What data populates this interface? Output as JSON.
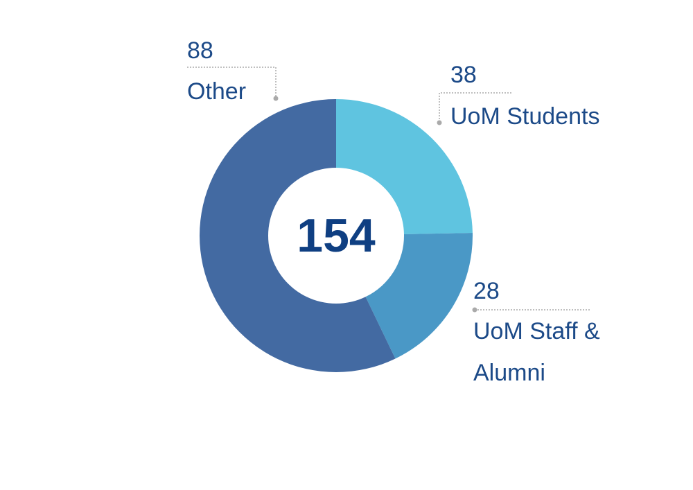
{
  "chart_data": {
    "type": "donut",
    "total": 154,
    "categories": [
      "UoM Students",
      "UoM Staff & Alumni",
      "Other"
    ],
    "values": [
      38,
      28,
      88
    ],
    "colors": [
      "#5fc4e0",
      "#4a98c6",
      "#436aa2"
    ]
  }
}
